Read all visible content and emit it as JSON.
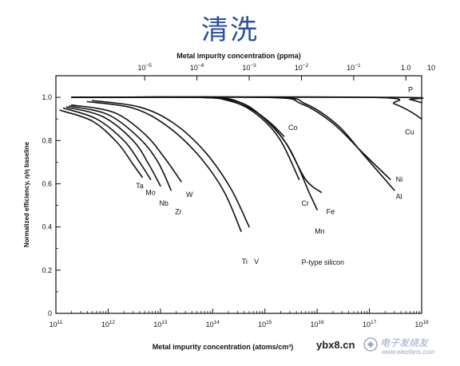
{
  "slide": {
    "title": "清洗"
  },
  "watermark": {
    "site": "ybx8.cn",
    "cn_text": "电子发烧友",
    "url": "www.elecfans.com"
  },
  "chart_data": {
    "type": "line",
    "title": "",
    "annotation": "P-type silicon",
    "xlabel": "Metal impurity concentration (atoms/cm³)",
    "x2label": "Metal impurity concentration (ppma)",
    "ylabel": "Normalized efficiency, η/η baseline",
    "x_scale": "log",
    "xlim": [
      100000000000.0,
      1e+18
    ],
    "ylim": [
      0,
      1.1
    ],
    "x_ticks": [
      {
        "value": 100000000000.0,
        "mant": "10",
        "exp": "11"
      },
      {
        "value": 1000000000000.0,
        "mant": "10",
        "exp": "12"
      },
      {
        "value": 10000000000000.0,
        "mant": "10",
        "exp": "13"
      },
      {
        "value": 100000000000000.0,
        "mant": "10",
        "exp": "14"
      },
      {
        "value": 1000000000000000.0,
        "mant": "10",
        "exp": "15"
      },
      {
        "value": 1e+16,
        "mant": "10",
        "exp": "16"
      },
      {
        "value": 1e+17,
        "mant": "10",
        "exp": "17"
      },
      {
        "value": 1e+18,
        "mant": "10",
        "exp": "18"
      }
    ],
    "x2_ticks": [
      {
        "at": 5000000000000.0,
        "mant": "10",
        "exp": "−5"
      },
      {
        "at": 50000000000000.0,
        "mant": "10",
        "exp": "−4"
      },
      {
        "at": 500000000000000.0,
        "mant": "10",
        "exp": "−3"
      },
      {
        "at": 5000000000000000.0,
        "mant": "10",
        "exp": "−2"
      },
      {
        "at": 5e+16,
        "mant": "10",
        "exp": "−1"
      },
      {
        "at": 5e+17,
        "text": "1.0"
      },
      {
        "at": 5e+18,
        "text": "10"
      }
    ],
    "y_ticks": [
      {
        "value": 0,
        "label": "0"
      },
      {
        "value": 0.2,
        "label": "0.2"
      },
      {
        "value": 0.4,
        "label": "0.4"
      },
      {
        "value": 0.6,
        "label": "0.6"
      },
      {
        "value": 0.8,
        "label": "0.8"
      },
      {
        "value": 1.0,
        "label": "1.0"
      }
    ],
    "series": [
      {
        "name": "Ta",
        "points": [
          [
            120000000000.0,
            0.94
          ],
          [
            500000000000.0,
            0.89
          ],
          [
            1500000000000.0,
            0.79
          ],
          [
            3000000000000.0,
            0.69
          ],
          [
            4500000000000.0,
            0.63
          ]
        ],
        "label_at": [
          3400000000000.0,
          0.59
        ]
      },
      {
        "name": "Mo",
        "points": [
          [
            140000000000.0,
            0.95
          ],
          [
            600000000000.0,
            0.9
          ],
          [
            2000000000000.0,
            0.8
          ],
          [
            4000000000000.0,
            0.7
          ],
          [
            6500000000000.0,
            0.62
          ]
        ],
        "label_at": [
          5200000000000.0,
          0.56
        ]
      },
      {
        "name": "Nb",
        "points": [
          [
            160000000000.0,
            0.955
          ],
          [
            800000000000.0,
            0.91
          ],
          [
            3000000000000.0,
            0.8
          ],
          [
            6000000000000.0,
            0.69
          ],
          [
            10000000000000.0,
            0.59
          ]
        ],
        "label_at": [
          9500000000000.0,
          0.51
        ]
      },
      {
        "name": "Zr",
        "points": [
          [
            180000000000.0,
            0.96
          ],
          [
            1000000000000.0,
            0.92
          ],
          [
            4000000000000.0,
            0.81
          ],
          [
            9000000000000.0,
            0.7
          ],
          [
            16000000000000.0,
            0.57
          ]
        ],
        "label_at": [
          19000000000000.0,
          0.47
        ]
      },
      {
        "name": "W",
        "points": [
          [
            200000000000.0,
            0.965
          ],
          [
            1300000000000.0,
            0.93
          ],
          [
            5000000000000.0,
            0.83
          ],
          [
            12000000000000.0,
            0.72
          ],
          [
            25000000000000.0,
            0.61
          ]
        ],
        "label_at": [
          31000000000000.0,
          0.55
        ]
      },
      {
        "name": "Ti",
        "points": [
          [
            400000000000.0,
            0.98
          ],
          [
            3000000000000.0,
            0.95
          ],
          [
            13000000000000.0,
            0.87
          ],
          [
            50000000000000.0,
            0.74
          ],
          [
            160000000000000.0,
            0.57
          ],
          [
            350000000000000.0,
            0.38
          ]
        ],
        "label_at": [
          360000000000000.0,
          0.24
        ]
      },
      {
        "name": "V",
        "points": [
          [
            500000000000.0,
            0.985
          ],
          [
            4000000000000.0,
            0.955
          ],
          [
            18000000000000.0,
            0.88
          ],
          [
            70000000000000.0,
            0.75
          ],
          [
            220000000000000.0,
            0.58
          ],
          [
            500000000000000.0,
            0.4
          ]
        ],
        "label_at": [
          620000000000000.0,
          0.24
        ]
      },
      {
        "name": "Co",
        "points": [
          [
            200000000000.0,
            1.0
          ],
          [
            50000000000000.0,
            1.0
          ],
          [
            200000000000000.0,
            0.985
          ],
          [
            600000000000000.0,
            0.94
          ],
          [
            1300000000000000.0,
            0.88
          ],
          [
            2300000000000000.0,
            0.82
          ]
        ],
        "label_at": [
          2800000000000000.0,
          0.86
        ]
      },
      {
        "name": "Cr",
        "points": [
          [
            200000000000.0,
            1.0
          ],
          [
            50000000000000.0,
            1.0
          ],
          [
            250000000000000.0,
            0.98
          ],
          [
            800000000000000.0,
            0.91
          ],
          [
            2000000000000000.0,
            0.8
          ],
          [
            4500000000000000.0,
            0.62
          ]
        ],
        "label_at": [
          5000000000000000.0,
          0.51
        ]
      },
      {
        "name": "Fe",
        "points": [
          [
            200000000000.0,
            1.0
          ],
          [
            60000000000000.0,
            1.0
          ],
          [
            300000000000000.0,
            0.98
          ],
          [
            1000000000000000.0,
            0.9
          ],
          [
            2500000000000000.0,
            0.79
          ],
          [
            6000000000000000.0,
            0.62
          ],
          [
            1.2e+16,
            0.56
          ]
        ],
        "label_at": [
          1.5e+16,
          0.47
        ]
      },
      {
        "name": "Mn",
        "points": [
          [
            200000000000.0,
            1.0
          ],
          [
            70000000000000.0,
            1.0
          ],
          [
            350000000000000.0,
            0.975
          ],
          [
            1100000000000000.0,
            0.89
          ],
          [
            3000000000000000.0,
            0.76
          ],
          [
            7000000000000000.0,
            0.56
          ],
          [
            1e+16,
            0.48
          ]
        ],
        "label_at": [
          9000000000000000.0,
          0.38
        ]
      },
      {
        "name": "Ni",
        "points": [
          [
            200000000000.0,
            1.0
          ],
          [
            1000000000000000.0,
            1.0
          ],
          [
            5000000000000000.0,
            0.97
          ],
          [
            2e+16,
            0.88
          ],
          [
            7e+16,
            0.75
          ],
          [
            2.5e+17,
            0.62
          ]
        ],
        "label_at": [
          3.2e+17,
          0.62
        ]
      },
      {
        "name": "Al",
        "points": [
          [
            200000000000.0,
            1.0
          ],
          [
            1200000000000000.0,
            1.0
          ],
          [
            6000000000000000.0,
            0.97
          ],
          [
            2.5e+16,
            0.87
          ],
          [
            8e+16,
            0.73
          ],
          [
            3e+17,
            0.57
          ]
        ],
        "label_at": [
          3.2e+17,
          0.54
        ]
      },
      {
        "name": "P",
        "points": [
          [
            200000000000.0,
            1.0
          ],
          [
            3e+17,
            1.0
          ],
          [
            6e+17,
            0.99
          ],
          [
            1e+18,
            0.975
          ]
        ],
        "label_at": [
          5.5e+17,
          1.035
        ]
      },
      {
        "name": "Cu",
        "points": [
          [
            200000000000.0,
            1.0
          ],
          [
            1e+17,
            1.0
          ],
          [
            3e+17,
            0.97
          ],
          [
            6e+17,
            0.935
          ],
          [
            1e+18,
            0.9
          ]
        ],
        "label_at": [
          4.8e+17,
          0.84
        ]
      }
    ]
  }
}
